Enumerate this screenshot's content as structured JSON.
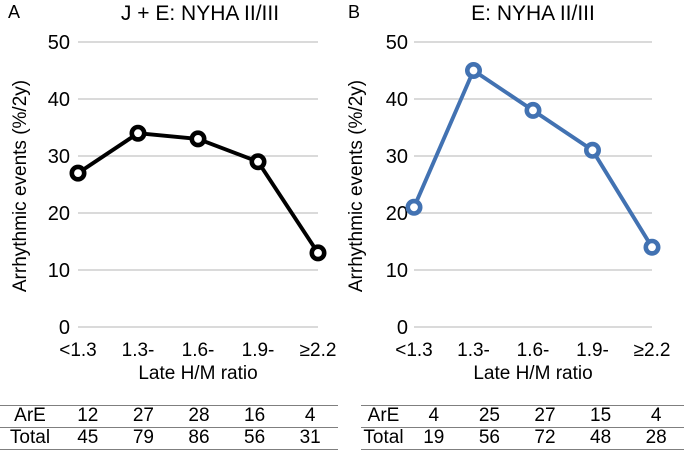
{
  "colors": {
    "background": "#ffffff",
    "gridline": "#c4c4c4",
    "table_rule": "#7f7f7f",
    "text": "#000000",
    "series_a": "#000000",
    "series_b": "#4272b2",
    "marker_fill": "#ffffff"
  },
  "chart_data": [
    {
      "type": "line",
      "panel_label": "A",
      "title": "J + E: NYHA II/III",
      "xlabel": "Late H/M ratio",
      "ylabel": "Arrhythmic events (%/2y)",
      "categories": [
        "<1.3",
        "1.3-",
        "1.6-",
        "1.9-",
        "≥2.2"
      ],
      "values": [
        27,
        34,
        33,
        29,
        13
      ],
      "ylim": [
        0,
        50
      ],
      "yticks": [
        0,
        10,
        20,
        30,
        40,
        50
      ],
      "grid": "horizontal-gridlines",
      "legend": "none",
      "line_color": "#000000",
      "marker": "open-circle",
      "table": {
        "rows": [
          {
            "label": "ArE",
            "values": [
              "12",
              "27",
              "28",
              "16",
              "4"
            ]
          },
          {
            "label": "Total",
            "values": [
              "45",
              "79",
              "86",
              "56",
              "31"
            ]
          }
        ]
      }
    },
    {
      "type": "line",
      "panel_label": "B",
      "title": "E: NYHA II/III",
      "xlabel": "Late H/M ratio",
      "ylabel": "Arrhythmic events (%/2y)",
      "categories": [
        "<1.3",
        "1.3-",
        "1.6-",
        "1.9-",
        "≥2.2"
      ],
      "values": [
        21,
        45,
        38,
        31,
        14
      ],
      "ylim": [
        0,
        50
      ],
      "yticks": [
        0,
        10,
        20,
        30,
        40,
        50
      ],
      "grid": "horizontal-gridlines",
      "legend": "none",
      "line_color": "#4272b2",
      "marker": "open-circle",
      "table": {
        "rows": [
          {
            "label": "ArE",
            "values": [
              "4",
              "25",
              "27",
              "15",
              "4"
            ]
          },
          {
            "label": "Total",
            "values": [
              "19",
              "56",
              "72",
              "48",
              "28"
            ]
          }
        ]
      }
    }
  ]
}
